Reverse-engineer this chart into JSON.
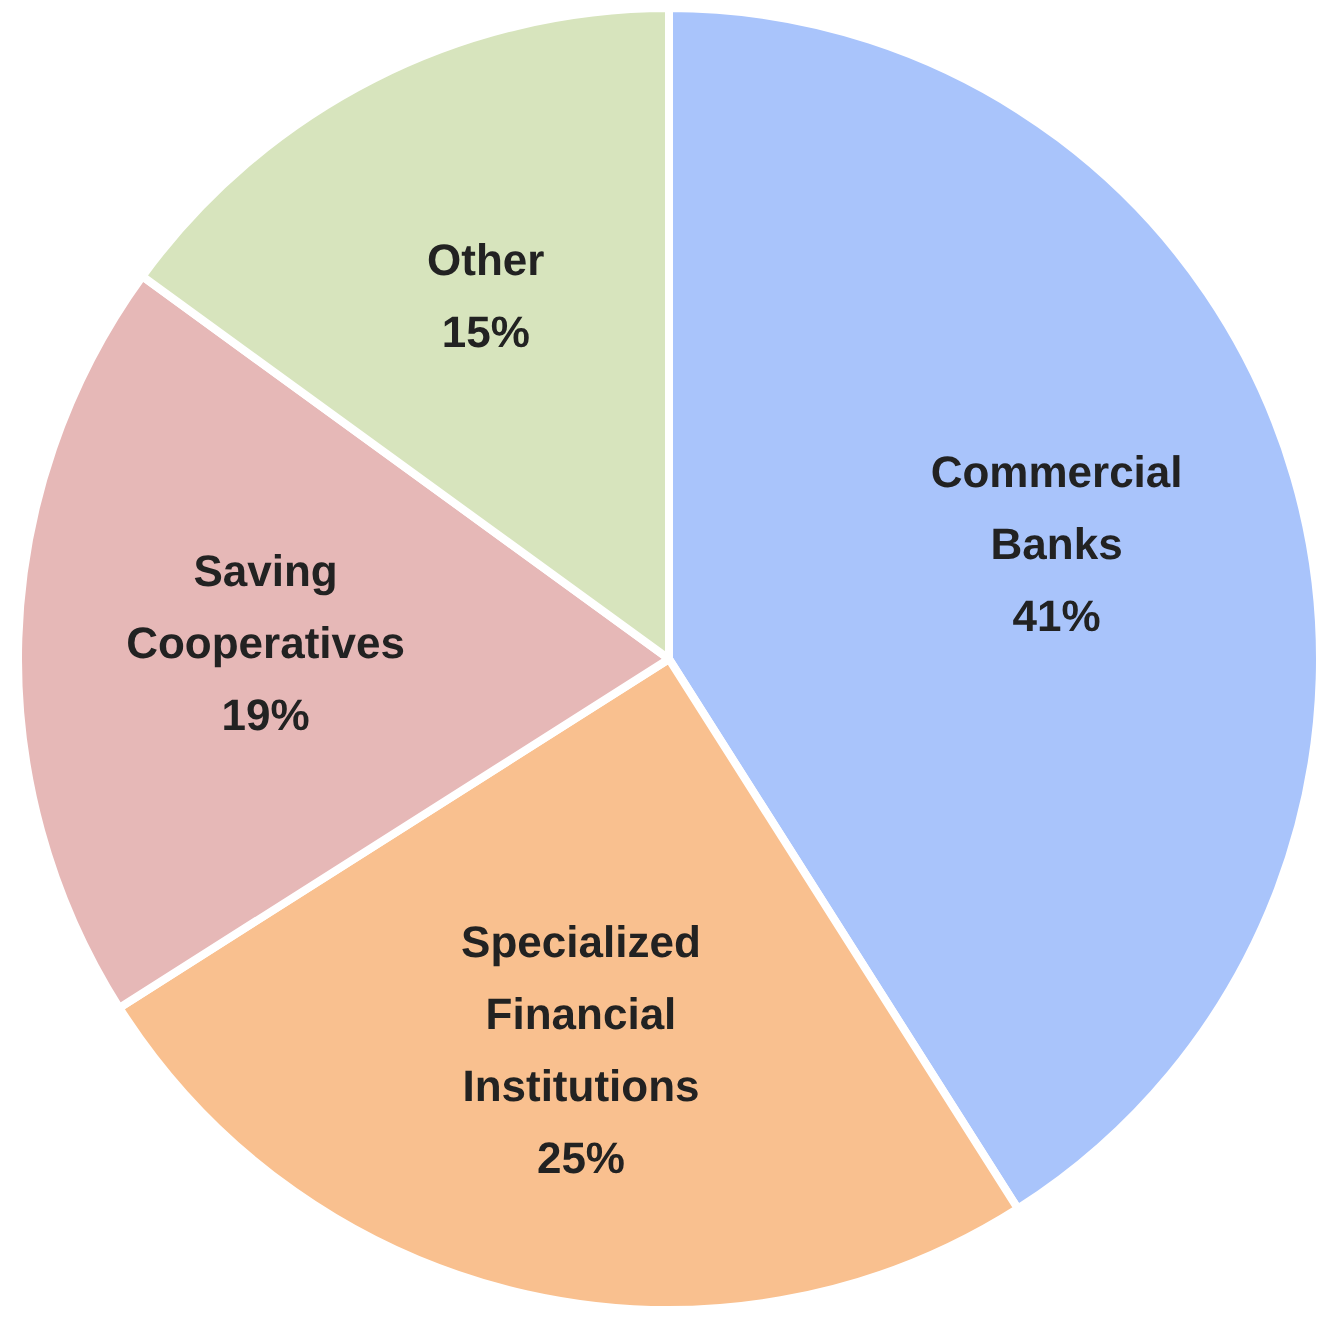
{
  "chart_data": {
    "type": "pie",
    "categories": [
      "Commercial Banks",
      "Specialized Financial Institutions",
      "Saving Cooperatives",
      "Other"
    ],
    "values": [
      41,
      25,
      19,
      15
    ],
    "value_labels": [
      "41%",
      "25%",
      "19%",
      "15%"
    ],
    "colors": [
      "#a9c4fb",
      "#f9c08f",
      "#e6b8b7",
      "#d7e4bd"
    ],
    "legend": false
  }
}
